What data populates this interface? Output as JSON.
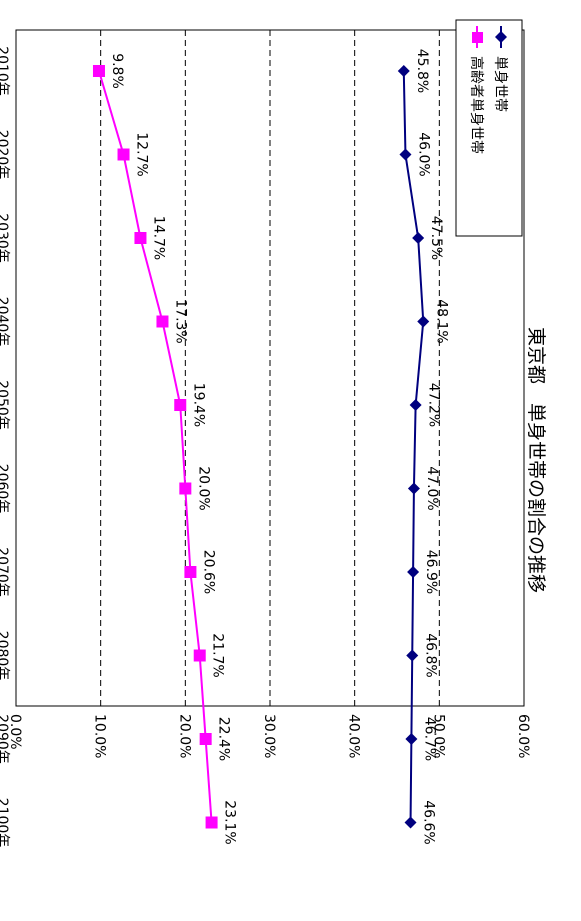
{
  "chart_data": {
    "type": "line",
    "title": "東京都　単身世帯の割合の推移",
    "orientation": "rotated-90-clockwise",
    "categories": [
      "2010年",
      "2020年",
      "2030年",
      "2040年",
      "2050年",
      "2060年",
      "2070年",
      "2080年",
      "2090年",
      "2100年"
    ],
    "y_tick_labels": [
      "0.0%",
      "10.0%",
      "20.0%",
      "30.0%",
      "40.0%",
      "50.0%",
      "60.0%"
    ],
    "ylim": [
      0,
      60
    ],
    "grid": "dashed horizontal at 10% steps",
    "legend_position": "top-right",
    "series": [
      {
        "name": "単身世帯",
        "color": "#00007F",
        "marker": "diamond",
        "values": [
          45.8,
          46.0,
          47.5,
          48.1,
          47.2,
          47.0,
          46.9,
          46.8,
          46.7,
          46.6
        ],
        "labels": [
          "45.8%",
          "46.0%",
          "47.5%",
          "48.1%",
          "47.2%",
          "47.0%",
          "46.9%",
          "46.8%",
          "46.7%",
          "46.6%"
        ]
      },
      {
        "name": "高齢者単身世帯",
        "color": "#FF00FF",
        "marker": "square",
        "values": [
          9.8,
          12.7,
          14.7,
          17.3,
          19.4,
          20.0,
          20.6,
          21.7,
          22.4,
          23.1
        ],
        "labels": [
          "9.8%",
          "12.7%",
          "14.7%",
          "17.3%",
          "19.4%",
          "20.0%",
          "20.6%",
          "21.7%",
          "22.4%",
          "23.1%"
        ]
      }
    ]
  }
}
